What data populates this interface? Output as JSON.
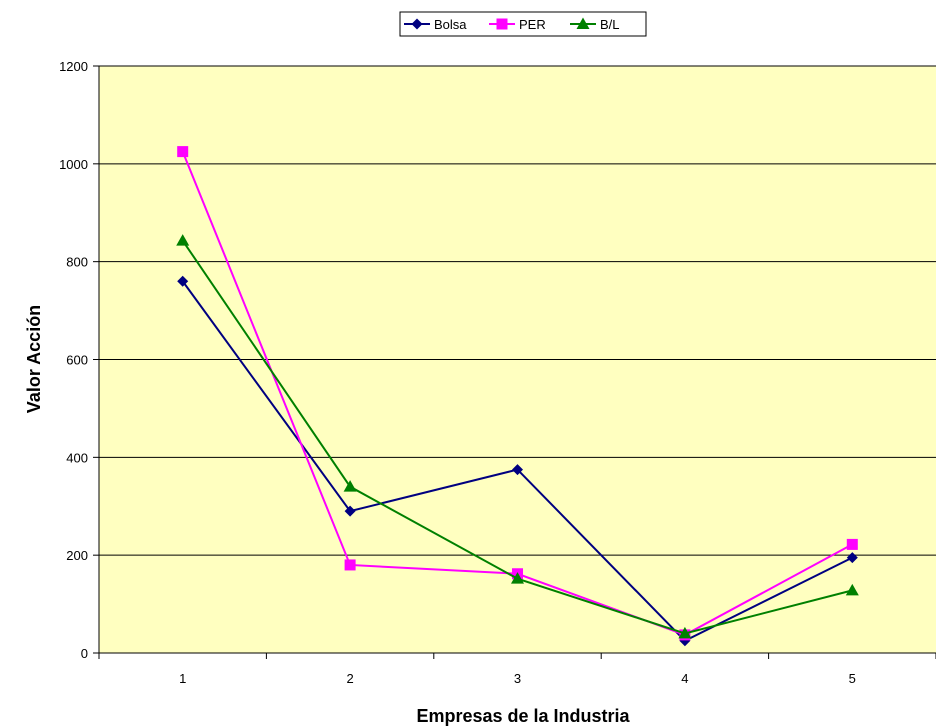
{
  "chart_data": {
    "type": "line",
    "title": "",
    "xlabel": "Empresas de la Industria",
    "ylabel": "Valor Acción",
    "categories": [
      "1",
      "2",
      "3",
      "4",
      "5"
    ],
    "ylim": [
      0,
      1200
    ],
    "yticks": [
      0,
      200,
      400,
      600,
      800,
      1000,
      1200
    ],
    "grid": true,
    "legend_position": "top",
    "plot_background": "#ffffc0",
    "series": [
      {
        "name": "Bolsa",
        "color": "#000080",
        "marker": "diamond",
        "values": [
          760,
          290,
          375,
          25,
          195
        ]
      },
      {
        "name": "PER",
        "color": "#ff00ff",
        "marker": "square",
        "values": [
          1025,
          180,
          162,
          37,
          222
        ]
      },
      {
        "name": "B/L",
        "color": "#008000",
        "marker": "triangle",
        "values": [
          843,
          340,
          152,
          40,
          128
        ]
      }
    ]
  }
}
